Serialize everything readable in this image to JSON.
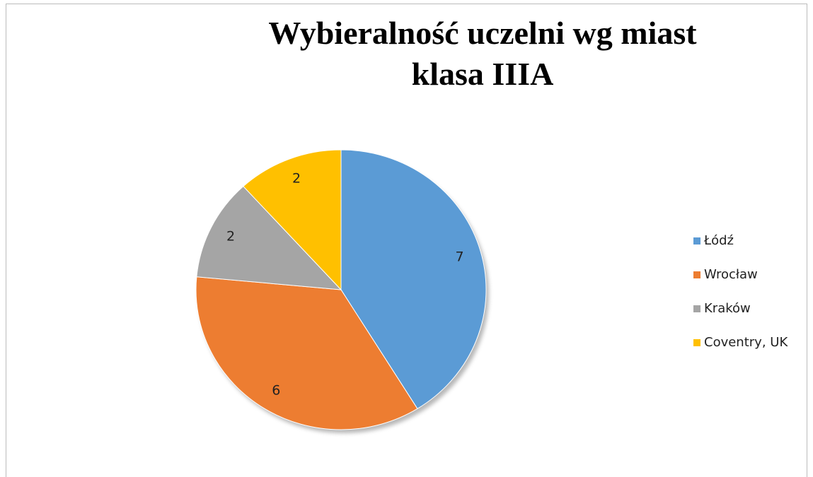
{
  "chart_data": {
    "type": "pie",
    "title": [
      "Wybieralność uczelni wg miast",
      "klasa IIIA"
    ],
    "categories": [
      "Łódź",
      "Wrocław",
      "Kraków",
      "Coventry, UK"
    ],
    "values": [
      7,
      6,
      2,
      2
    ],
    "colors": [
      "#5b9bd5",
      "#ed7d31",
      "#a5a5a5",
      "#ffc000"
    ],
    "legend": "right"
  }
}
